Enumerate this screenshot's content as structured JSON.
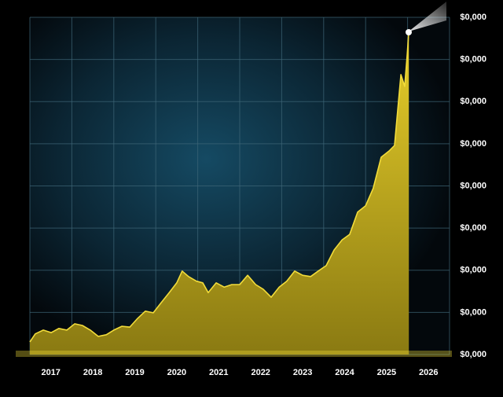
{
  "chart_data": {
    "type": "area",
    "x": [
      2017.0,
      2017.13,
      2017.32,
      2017.51,
      2017.69,
      2017.88,
      2018.07,
      2018.25,
      2018.44,
      2018.63,
      2018.82,
      2019.0,
      2019.19,
      2019.38,
      2019.57,
      2019.75,
      2019.94,
      2020.13,
      2020.32,
      2020.5,
      2020.63,
      2020.78,
      2020.97,
      2021.12,
      2021.25,
      2021.44,
      2021.63,
      2021.81,
      2022.0,
      2022.19,
      2022.38,
      2022.56,
      2022.75,
      2022.94,
      2023.12,
      2023.31,
      2023.5,
      2023.69,
      2023.87,
      2024.06,
      2024.25,
      2024.44,
      2024.62,
      2024.81,
      2025.0,
      2025.18,
      2025.37,
      2025.56,
      2025.69,
      2025.84,
      2025.93,
      2025.99,
      2026.03
    ],
    "values": [
      0.3,
      0.49,
      0.58,
      0.52,
      0.62,
      0.58,
      0.73,
      0.69,
      0.58,
      0.43,
      0.47,
      0.58,
      0.67,
      0.65,
      0.86,
      1.03,
      0.99,
      1.23,
      1.47,
      1.7,
      1.98,
      1.85,
      1.74,
      1.7,
      1.47,
      1.7,
      1.6,
      1.66,
      1.66,
      1.88,
      1.66,
      1.55,
      1.36,
      1.6,
      1.74,
      1.98,
      1.88,
      1.85,
      1.98,
      2.11,
      2.48,
      2.72,
      2.85,
      3.38,
      3.53,
      3.94,
      4.68,
      4.83,
      4.96,
      6.64,
      6.36,
      7.11,
      7.67
    ],
    "color": "#f2dc3a",
    "xlim": [
      2017,
      2027
    ],
    "xticks": [
      2017,
      2018,
      2019,
      2020,
      2021,
      2022,
      2023,
      2024,
      2025,
      2026
    ],
    "ylim": [
      0,
      8
    ],
    "yticks": [
      {
        "value": 0,
        "label": "$0,000"
      },
      {
        "value": 1,
        "label": "$0,000"
      },
      {
        "value": 2,
        "label": "$0,000"
      },
      {
        "value": 3,
        "label": "$0,000"
      },
      {
        "value": 4,
        "label": "$0,000"
      },
      {
        "value": 5,
        "label": "$0,000"
      },
      {
        "value": 6,
        "label": "$0,000"
      },
      {
        "value": 7,
        "label": "$0,000"
      },
      {
        "value": 8,
        "label": "$0,000"
      }
    ],
    "grid": true
  }
}
